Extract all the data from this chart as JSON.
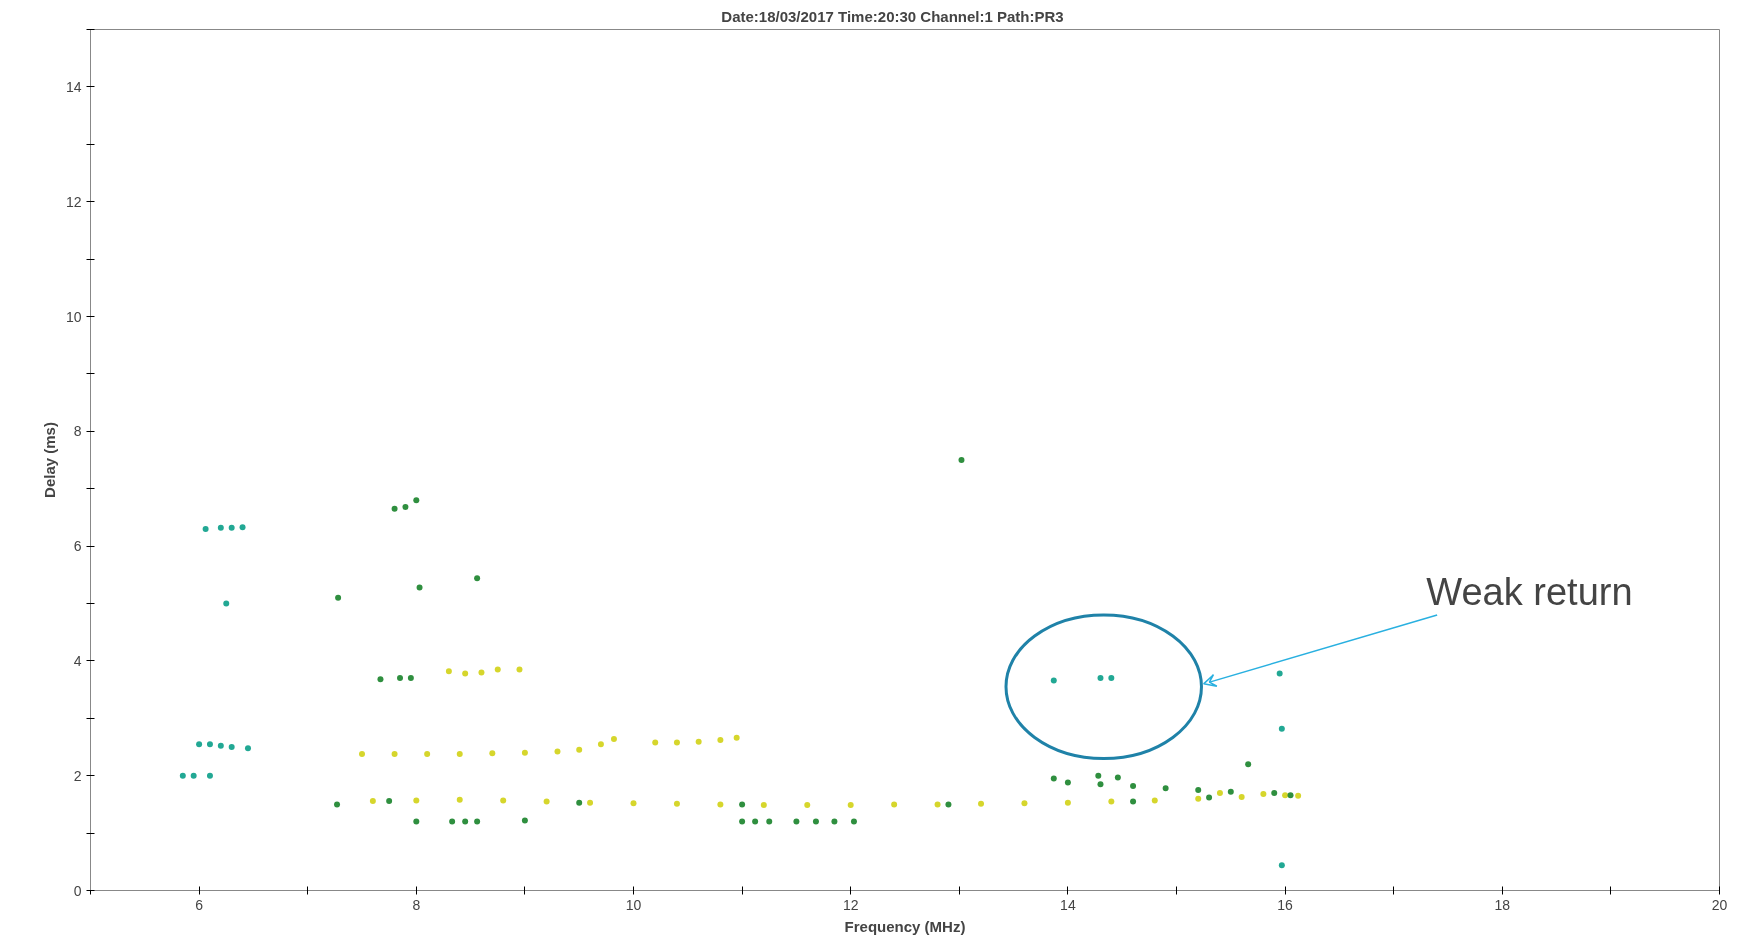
{
  "chart_data": {
    "type": "scatter",
    "title": "Date:18/03/2017   Time:20:30   Channel:1   Path:PR3",
    "xlabel": "Frequency (MHz)",
    "ylabel": "Delay (ms)",
    "xlim": [
      5,
      20
    ],
    "ylim": [
      0,
      15
    ],
    "xticks": [
      {
        "value": 5,
        "label": null
      },
      6,
      {
        "value": 7,
        "label": null
      },
      8,
      {
        "value": 9,
        "label": null
      },
      10,
      {
        "value": 11,
        "label": null
      },
      12,
      {
        "value": 13,
        "label": null
      },
      14,
      {
        "value": 15,
        "label": null
      },
      16,
      {
        "value": 17,
        "label": null
      },
      18,
      {
        "value": 19,
        "label": null
      },
      20
    ],
    "yticks": [
      0,
      {
        "value": 1,
        "label": null
      },
      2,
      {
        "value": 3,
        "label": null
      },
      4,
      {
        "value": 5,
        "label": null
      },
      6,
      {
        "value": 7,
        "label": null
      },
      8,
      {
        "value": 9,
        "label": null
      },
      10,
      {
        "value": 11,
        "label": null
      },
      12,
      {
        "value": 13,
        "label": null
      },
      14,
      {
        "value": 15,
        "label": null
      }
    ],
    "grid": false,
    "marker": "circle",
    "series": [
      {
        "color": "#d6d62c",
        "x": [
          7.6,
          8.0,
          8.4,
          8.8,
          9.2,
          9.6,
          10.0,
          10.4,
          10.8,
          11.2,
          11.6,
          12.0,
          12.4,
          12.8,
          13.2,
          13.6,
          14.0,
          14.4,
          14.8,
          15.2,
          15.6,
          16.0,
          15.4,
          15.8,
          16.12,
          7.5,
          7.8,
          8.1,
          8.4,
          8.7,
          9.0,
          9.3,
          9.5,
          9.7,
          9.82,
          10.2,
          10.4,
          10.6,
          10.8,
          10.95,
          8.3,
          8.45,
          8.6,
          8.75,
          8.95
        ],
        "values": [
          1.56,
          1.57,
          1.58,
          1.57,
          1.55,
          1.53,
          1.52,
          1.51,
          1.5,
          1.49,
          1.49,
          1.49,
          1.5,
          1.5,
          1.51,
          1.52,
          1.53,
          1.55,
          1.57,
          1.6,
          1.63,
          1.66,
          1.7,
          1.68,
          1.65,
          2.38,
          2.38,
          2.38,
          2.38,
          2.39,
          2.4,
          2.42,
          2.45,
          2.55,
          2.64,
          2.58,
          2.58,
          2.59,
          2.62,
          2.66,
          3.82,
          3.78,
          3.8,
          3.85,
          3.85
        ]
      },
      {
        "color": "#2f8f3f",
        "x": [
          7.8,
          7.9,
          8.0,
          7.28,
          8.03,
          8.56,
          7.67,
          7.85,
          7.95,
          13.02,
          7.27,
          8.0,
          8.33,
          8.45,
          8.56,
          9.0,
          11.0,
          11.12,
          11.25,
          11.5,
          11.68,
          11.85,
          12.03,
          15.66,
          13.87,
          14.28,
          14.46,
          14.0,
          14.3,
          14.6,
          14.9,
          15.2,
          15.5,
          15.9,
          16.05,
          7.75,
          9.5,
          11.0,
          12.9,
          14.6,
          15.3
        ],
        "values": [
          6.65,
          6.68,
          6.8,
          5.1,
          5.28,
          5.44,
          3.68,
          3.7,
          3.7,
          7.5,
          1.5,
          1.2,
          1.2,
          1.2,
          1.2,
          1.22,
          1.2,
          1.2,
          1.2,
          1.2,
          1.2,
          1.2,
          1.2,
          2.2,
          1.95,
          2.0,
          1.97,
          1.88,
          1.85,
          1.82,
          1.78,
          1.75,
          1.72,
          1.7,
          1.66,
          1.56,
          1.53,
          1.5,
          1.5,
          1.55,
          1.62
        ]
      },
      {
        "color": "#22a894",
        "x": [
          6.06,
          6.2,
          6.3,
          6.4,
          6.25,
          6.0,
          6.1,
          6.2,
          6.3,
          6.45,
          5.85,
          5.95,
          6.1,
          15.97,
          15.95,
          15.97,
          13.87,
          14.3,
          14.4
        ],
        "values": [
          6.3,
          6.32,
          6.32,
          6.33,
          5.0,
          2.55,
          2.55,
          2.52,
          2.5,
          2.48,
          2.0,
          2.0,
          2.0,
          2.82,
          3.78,
          0.44,
          3.66,
          3.7,
          3.7
        ]
      }
    ],
    "annotations": [
      "Weak return"
    ]
  }
}
